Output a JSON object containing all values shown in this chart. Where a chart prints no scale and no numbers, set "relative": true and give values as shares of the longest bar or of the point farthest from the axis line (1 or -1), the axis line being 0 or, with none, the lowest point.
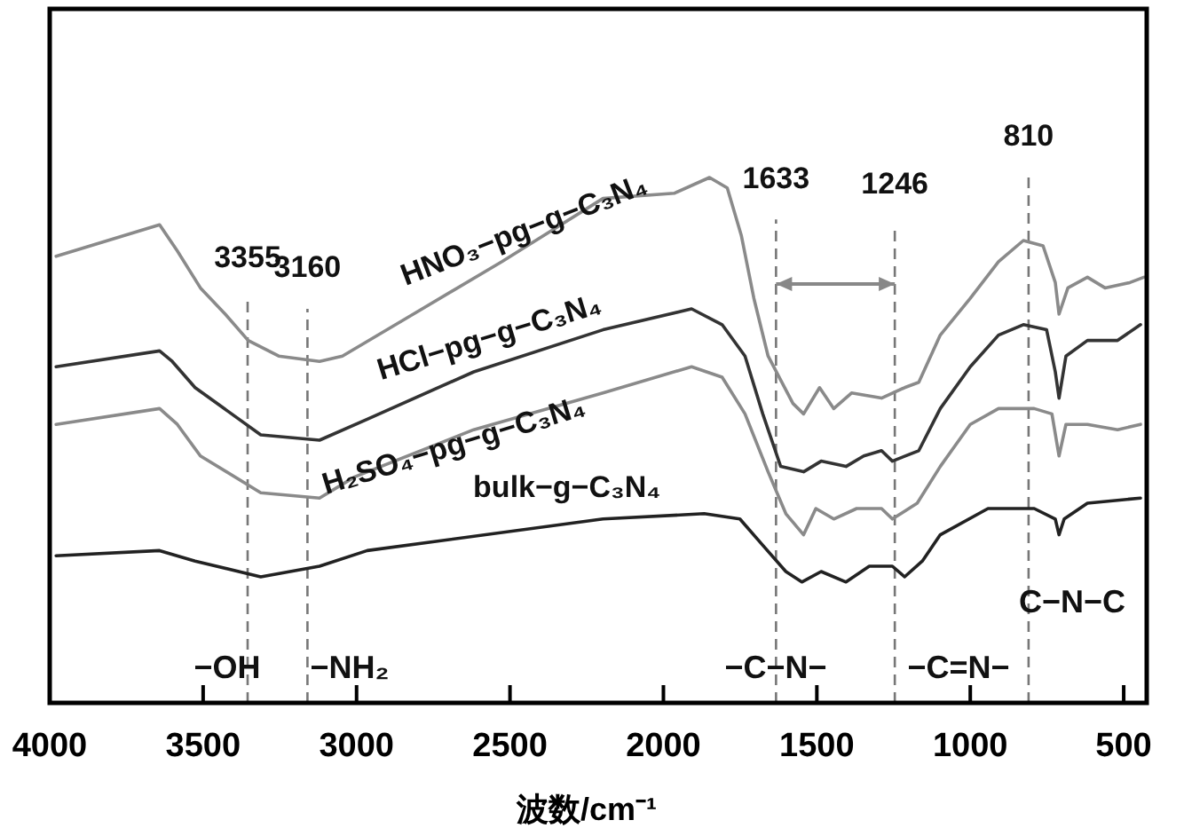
{
  "chart_data": {
    "type": "line",
    "relative": true,
    "xlabel": "波数/cm⁻¹",
    "xlim": [
      4000,
      425
    ],
    "xticks": [
      4000,
      3500,
      3000,
      2500,
      2000,
      1500,
      1000,
      500
    ],
    "grid": false,
    "x": [
      3979,
      3642,
      3584,
      3509,
      3428,
      3353,
      3254,
      3121,
      3046,
      2815,
      2526,
      2197,
      1965,
      1850,
      1792,
      1746,
      1705,
      1659,
      1578,
      1543,
      1491,
      1445,
      1387,
      1289,
      1214,
      1168,
      1098,
      1000,
      908,
      827,
      763,
      723,
      711,
      682,
      618,
      561,
      480,
      434
    ],
    "series": [
      {
        "name": "HNO₃−pg−g−C₃N₄",
        "color": "#8a8a8a",
        "values": [
          0.85,
          0.91,
          0.86,
          0.79,
          0.74,
          0.69,
          0.66,
          0.65,
          0.66,
          0.74,
          0.84,
          0.96,
          0.97,
          1.0,
          0.98,
          0.89,
          0.77,
          0.66,
          0.57,
          0.55,
          0.6,
          0.56,
          0.59,
          0.58,
          0.6,
          0.61,
          0.7,
          0.77,
          0.84,
          0.88,
          0.87,
          0.8,
          0.74,
          0.79,
          0.81,
          0.79,
          0.8,
          0.81
        ]
      },
      {
        "name": "HCl−pg−g−C₃N₄",
        "color": "#333333",
        "x": [
          3979,
          3642,
          3601,
          3526,
          3312,
          3121,
          2965,
          2618,
          2197,
          1908,
          1809,
          1734,
          1676,
          1618,
          1543,
          1486,
          1405,
          1347,
          1289,
          1254,
          1168,
          1098,
          1000,
          908,
          827,
          751,
          723,
          711,
          688,
          618,
          520,
          445
        ],
        "values": [
          0.64,
          0.67,
          0.65,
          0.6,
          0.51,
          0.5,
          0.54,
          0.63,
          0.71,
          0.75,
          0.72,
          0.66,
          0.55,
          0.45,
          0.44,
          0.46,
          0.45,
          0.47,
          0.48,
          0.46,
          0.48,
          0.56,
          0.64,
          0.7,
          0.72,
          0.71,
          0.63,
          0.58,
          0.66,
          0.69,
          0.69,
          0.72
        ]
      },
      {
        "name": "H₂SO₄−pg−g−C₃N₄",
        "color": "#8a8a8a",
        "x": [
          3979,
          3642,
          3584,
          3509,
          3312,
          3121,
          3006,
          2618,
          2197,
          1908,
          1809,
          1734,
          1659,
          1601,
          1543,
          1503,
          1445,
          1370,
          1289,
          1254,
          1173,
          1098,
          1000,
          908,
          792,
          734,
          711,
          688,
          618,
          520,
          445
        ],
        "values": [
          0.53,
          0.56,
          0.53,
          0.47,
          0.4,
          0.39,
          0.43,
          0.52,
          0.59,
          0.64,
          0.62,
          0.55,
          0.44,
          0.36,
          0.32,
          0.37,
          0.35,
          0.37,
          0.37,
          0.35,
          0.38,
          0.45,
          0.53,
          0.56,
          0.56,
          0.55,
          0.47,
          0.53,
          0.53,
          0.52,
          0.53
        ]
      },
      {
        "name": "bulk−g−C₃N₄",
        "color": "#222222",
        "x": [
          3979,
          3642,
          3526,
          3312,
          3121,
          2965,
          2197,
          1867,
          1751,
          1676,
          1601,
          1549,
          1486,
          1405,
          1329,
          1254,
          1214,
          1156,
          1098,
          942,
          792,
          723,
          711,
          694,
          618,
          445
        ],
        "values": [
          0.28,
          0.29,
          0.27,
          0.24,
          0.26,
          0.29,
          0.35,
          0.36,
          0.35,
          0.3,
          0.25,
          0.23,
          0.25,
          0.23,
          0.26,
          0.26,
          0.24,
          0.27,
          0.32,
          0.37,
          0.37,
          0.35,
          0.32,
          0.35,
          0.38,
          0.39
        ]
      }
    ],
    "ref_lines": [
      {
        "axis": "x",
        "value": 3355,
        "label": "3355",
        "color": "#777777",
        "line_style": "dashed"
      },
      {
        "axis": "x",
        "value": 3160,
        "label": "3160",
        "color": "#777777",
        "line_style": "dashed"
      },
      {
        "axis": "x",
        "value": 1633,
        "label": "1633",
        "color": "#777777",
        "line_style": "dashed"
      },
      {
        "axis": "x",
        "value": 1246,
        "label": "1246",
        "color": "#777777",
        "line_style": "dashed"
      },
      {
        "axis": "x",
        "value": 810,
        "label": "810",
        "color": "#777777",
        "line_style": "dashed"
      }
    ],
    "annotations": [
      "−OH",
      "−NH₂",
      "−C−N−",
      "−C=N−",
      "C−N−C"
    ]
  }
}
